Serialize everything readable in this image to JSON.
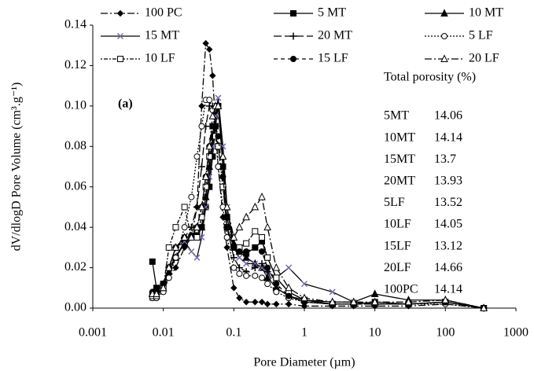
{
  "chart_data": {
    "type": "line",
    "xscale": "log",
    "xlabel": "Pore Diameter (µm)",
    "ylabel": "dV/dlogD  Pore Volume  (cm³.g⁻¹)",
    "annotation": "(a)",
    "porosity_table": {
      "title": "Total porosity (%)",
      "rows": [
        [
          "5MT",
          14.06
        ],
        [
          "10MT",
          14.14
        ],
        [
          "15MT",
          13.7
        ],
        [
          "20MT",
          13.93
        ],
        [
          "5LF",
          13.52
        ],
        [
          "10LF",
          14.05
        ],
        [
          "15LF",
          13.12
        ],
        [
          "20LF",
          14.66
        ],
        [
          "100PC",
          14.14
        ]
      ]
    },
    "xlim": [
      0.001,
      1000
    ],
    "xticks": [
      0.001,
      0.01,
      0.1,
      1,
      10,
      100,
      1000
    ],
    "ylim": [
      0,
      0.14
    ],
    "yticks": [
      {
        "value": 0,
        "label": "0.00"
      },
      {
        "value": 0.02,
        "label": "0.02"
      },
      {
        "value": 0.04,
        "label": "0.04"
      },
      {
        "value": 0.06,
        "label": "0.06"
      },
      {
        "value": 0.08,
        "label": "0.08"
      },
      {
        "value": 0.1,
        "label": "0.10"
      },
      {
        "value": 0.12,
        "label": "0.12"
      },
      {
        "value": 0.14,
        "label": "0.14"
      }
    ],
    "x": [
      0.007,
      0.008,
      0.01,
      0.012,
      0.015,
      0.02,
      0.025,
      0.03,
      0.035,
      0.04,
      0.045,
      0.05,
      0.055,
      0.06,
      0.07,
      0.08,
      0.1,
      0.12,
      0.15,
      0.2,
      0.25,
      0.3,
      0.4,
      0.6,
      1,
      2.5,
      5,
      10,
      30,
      100,
      350
    ],
    "series": [
      {
        "name": "100 PC",
        "color": "#000000",
        "dash": "dash-dot",
        "marker": "diamond",
        "values": [
          0.008,
          0.006,
          0.01,
          0.015,
          0.02,
          0.03,
          0.035,
          0.05,
          0.1,
          0.131,
          0.128,
          0.115,
          0.09,
          0.07,
          0.045,
          0.03,
          0.01,
          0.005,
          0.003,
          0.003,
          0.003,
          0.002,
          0.002,
          0.002,
          0.001,
          0.001,
          0.001,
          0.001,
          0.001,
          0.002,
          0
        ]
      },
      {
        "name": "5 MT",
        "color": "#000000",
        "dash": "solid",
        "marker": "square",
        "values": [
          0.023,
          0.01,
          0.012,
          0.02,
          0.025,
          0.032,
          0.035,
          0.036,
          0.04,
          0.05,
          0.06,
          0.075,
          0.09,
          0.1,
          0.07,
          0.04,
          0.03,
          0.028,
          0.027,
          0.03,
          0.033,
          0.025,
          0.015,
          0.008,
          0.004,
          0.002,
          0.002,
          0.003,
          0.002,
          0.003,
          0
        ]
      },
      {
        "name": "10 MT",
        "color": "#000000",
        "dash": "solid",
        "marker": "triangle",
        "values": [
          0.007,
          0.006,
          0.01,
          0.018,
          0.025,
          0.033,
          0.035,
          0.035,
          0.04,
          0.055,
          0.07,
          0.085,
          0.095,
          0.1,
          0.075,
          0.05,
          0.032,
          0.028,
          0.025,
          0.022,
          0.02,
          0.015,
          0.01,
          0.006,
          0.004,
          0.003,
          0.003,
          0.007,
          0.004,
          0.004,
          0
        ]
      },
      {
        "name": "15 MT",
        "color": "#000000",
        "marker_color": "#7b6bb0",
        "dash": "solid",
        "marker": "cross",
        "values": [
          0.005,
          0.006,
          0.01,
          0.02,
          0.03,
          0.033,
          0.028,
          0.025,
          0.035,
          0.05,
          0.065,
          0.08,
          0.095,
          0.104,
          0.08,
          0.05,
          0.03,
          0.025,
          0.022,
          0.022,
          0.02,
          0.018,
          0.015,
          0.02,
          0.012,
          0.008,
          0.003,
          0.002,
          0.002,
          0.003,
          0
        ]
      },
      {
        "name": "20 MT",
        "color": "#000000",
        "dash": "long-dash",
        "marker": "plus",
        "values": [
          0.006,
          0.007,
          0.012,
          0.02,
          0.03,
          0.035,
          0.04,
          0.05,
          0.07,
          0.09,
          0.1,
          0.1,
          0.09,
          0.08,
          0.06,
          0.04,
          0.025,
          0.02,
          0.018,
          0.02,
          0.022,
          0.018,
          0.01,
          0.006,
          0.003,
          0.002,
          0.002,
          0.002,
          0.002,
          0.003,
          0
        ]
      },
      {
        "name": "5 LF",
        "color": "#000000",
        "dash": "dotted",
        "marker": "open-circle",
        "values": [
          0.005,
          0.005,
          0.008,
          0.015,
          0.025,
          0.04,
          0.055,
          0.075,
          0.09,
          0.103,
          0.103,
          0.098,
          0.085,
          0.07,
          0.05,
          0.035,
          0.02,
          0.017,
          0.016,
          0.016,
          0.015,
          0.012,
          0.008,
          0.005,
          0.003,
          0.002,
          0.002,
          0.002,
          0.002,
          0.002,
          0
        ]
      },
      {
        "name": "10 LF",
        "color": "#000000",
        "dash": "dot-dash",
        "marker": "open-square",
        "values": [
          0.006,
          0.006,
          0.01,
          0.03,
          0.04,
          0.05,
          0.035,
          0.035,
          0.045,
          0.06,
          0.075,
          0.09,
          0.085,
          0.08,
          0.06,
          0.045,
          0.03,
          0.03,
          0.032,
          0.038,
          0.035,
          0.025,
          0.015,
          0.008,
          0.004,
          0.002,
          0.002,
          0.002,
          0.002,
          0.003,
          0
        ]
      },
      {
        "name": "15 LF",
        "color": "#000000",
        "dash": "dash",
        "marker": "circle",
        "values": [
          0.008,
          0.008,
          0.012,
          0.02,
          0.03,
          0.035,
          0.036,
          0.04,
          0.05,
          0.065,
          0.08,
          0.09,
          0.09,
          0.085,
          0.065,
          0.045,
          0.03,
          0.028,
          0.028,
          0.03,
          0.028,
          0.02,
          0.012,
          0.006,
          0.003,
          0.002,
          0.002,
          0.002,
          0.002,
          0.003,
          0
        ]
      },
      {
        "name": "20 LF",
        "color": "#000000",
        "dash": "dash-dot",
        "marker": "open-triangle",
        "values": [
          0.007,
          0.007,
          0.01,
          0.02,
          0.03,
          0.035,
          0.035,
          0.04,
          0.05,
          0.065,
          0.08,
          0.095,
          0.1,
          0.1,
          0.075,
          0.05,
          0.035,
          0.04,
          0.045,
          0.05,
          0.055,
          0.04,
          0.02,
          0.01,
          0.005,
          0.003,
          0.003,
          0.003,
          0.003,
          0.004,
          0
        ]
      }
    ]
  }
}
